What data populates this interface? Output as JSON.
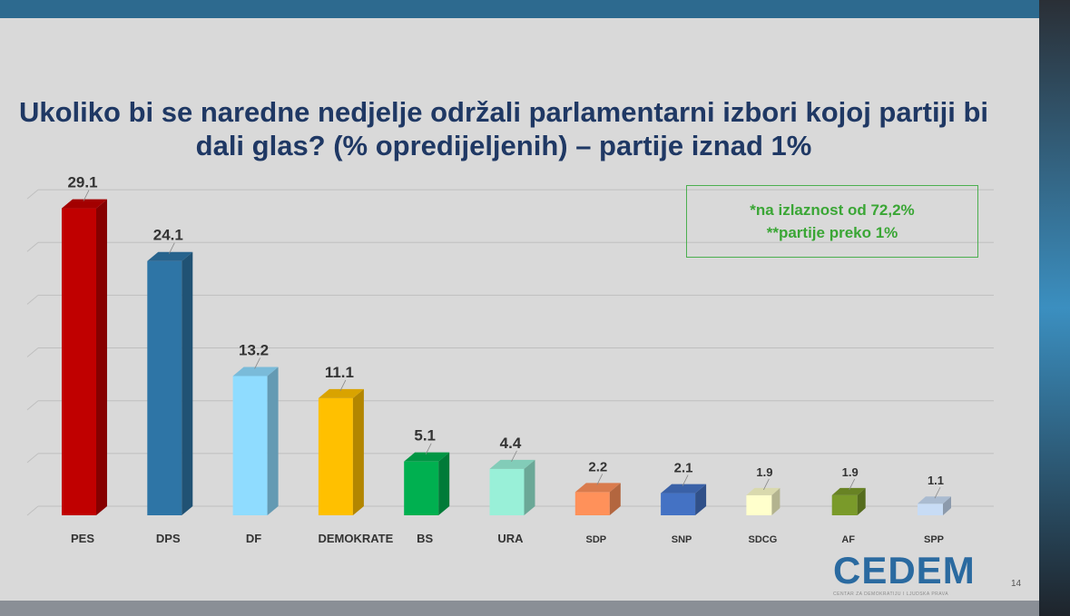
{
  "slide": {
    "title": "Ukoliko bi se naredne nedjelje održali parlamentarni izbori kojoj partiji bi dali glas? (% opredijeljenih) – partije iznad 1%",
    "note_line1": "*na izlaznost od 72,2%",
    "note_line2": "**partije preko 1%",
    "logo": "CEDEM",
    "logo_subtitle": "CENTAR ZA DEMOKRATIJU I LJUDSKA PRAVA",
    "page_number": "14"
  },
  "chart_data": {
    "type": "bar",
    "title": "Ukoliko bi se naredne nedjelje održali parlamentarni izbori kojoj partiji bi dali glas? (% opredijeljenih) – partije iznad 1%",
    "categories": [
      "PES",
      "DPS",
      "DF",
      "DEMOKRATE",
      "BS",
      "URA",
      "SDP",
      "SNP",
      "SDCG",
      "AF",
      "SPP"
    ],
    "values": [
      29.1,
      24.1,
      13.2,
      11.1,
      5.1,
      4.4,
      2.2,
      2.1,
      1.9,
      1.9,
      1.1
    ],
    "value_labels": [
      "29.1",
      "24.1",
      "13.2",
      "11.1",
      "5.1",
      "4.4",
      "2.2",
      "2.1",
      "1.9",
      "1.9",
      "1.1"
    ],
    "colors": [
      "#c00000",
      "#2e75a6",
      "#8fdcff",
      "#ffc000",
      "#00b050",
      "#99f0d8",
      "#ff915a",
      "#4472c4",
      "#ffffcc",
      "#7a9a2a",
      "#c8dcf5"
    ],
    "ylim": [
      0,
      30
    ],
    "grid": true,
    "xlabel": "",
    "ylabel": ""
  }
}
